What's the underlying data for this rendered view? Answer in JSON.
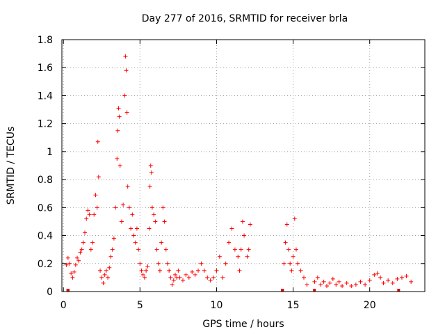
{
  "chart_data": {
    "type": "scatter",
    "title": "Day 277 of 2016, SRMTID for receiver brla",
    "xlabel": "GPS time / hours",
    "ylabel": "SRMTID / TECUs",
    "xlim": [
      -0.1,
      23.6
    ],
    "ylim": [
      0,
      1.8
    ],
    "x_ticks": [
      0,
      5,
      10,
      15,
      20
    ],
    "y_ticks": [
      0,
      0.2,
      0.4,
      0.6,
      0.8,
      1.0,
      1.2,
      1.4,
      1.6,
      1.8
    ],
    "x_tick_labels": [
      "0",
      "5",
      "10",
      "15",
      "20"
    ],
    "y_tick_labels": [
      "0",
      "0.2",
      "0.4",
      "0.6",
      "0.8",
      "1",
      "1.2",
      "1.4",
      "1.6",
      "1.8"
    ],
    "grid": true,
    "marker": "plus",
    "color": "#ff0000",
    "series": [
      {
        "name": "SRMTID",
        "points": [
          [
            0.2,
            0.19
          ],
          [
            0.3,
            0.24
          ],
          [
            0.4,
            0.2
          ],
          [
            0.5,
            0.13
          ],
          [
            0.6,
            0.1
          ],
          [
            0.7,
            0.14
          ],
          [
            0.8,
            0.19
          ],
          [
            0.9,
            0.24
          ],
          [
            1.0,
            0.22
          ],
          [
            1.1,
            0.28
          ],
          [
            1.2,
            0.3
          ],
          [
            1.3,
            0.35
          ],
          [
            1.4,
            0.42
          ],
          [
            1.5,
            0.52
          ],
          [
            1.6,
            0.58
          ],
          [
            1.7,
            0.55
          ],
          [
            1.8,
            0.3
          ],
          [
            1.9,
            0.35
          ],
          [
            2.0,
            0.55
          ],
          [
            2.1,
            0.69
          ],
          [
            2.2,
            0.6
          ],
          [
            2.25,
            1.07
          ],
          [
            2.3,
            0.82
          ],
          [
            2.4,
            0.15
          ],
          [
            2.5,
            0.1
          ],
          [
            2.6,
            0.06
          ],
          [
            2.7,
            0.12
          ],
          [
            2.8,
            0.15
          ],
          [
            2.9,
            0.1
          ],
          [
            3.0,
            0.17
          ],
          [
            3.1,
            0.25
          ],
          [
            3.2,
            0.3
          ],
          [
            3.3,
            0.38
          ],
          [
            3.4,
            0.6
          ],
          [
            3.5,
            0.95
          ],
          [
            3.55,
            1.15
          ],
          [
            3.6,
            1.31
          ],
          [
            3.65,
            1.25
          ],
          [
            3.7,
            0.9
          ],
          [
            3.8,
            0.5
          ],
          [
            3.9,
            0.62
          ],
          [
            4.0,
            1.4
          ],
          [
            4.05,
            1.68
          ],
          [
            4.1,
            1.58
          ],
          [
            4.15,
            1.28
          ],
          [
            4.2,
            0.75
          ],
          [
            4.3,
            0.6
          ],
          [
            4.4,
            0.45
          ],
          [
            4.5,
            0.55
          ],
          [
            4.6,
            0.4
          ],
          [
            4.7,
            0.35
          ],
          [
            4.8,
            0.45
          ],
          [
            4.9,
            0.3
          ],
          [
            5.0,
            0.2
          ],
          [
            5.1,
            0.15
          ],
          [
            5.2,
            0.12
          ],
          [
            5.3,
            0.1
          ],
          [
            5.4,
            0.15
          ],
          [
            5.5,
            0.18
          ],
          [
            5.6,
            0.45
          ],
          [
            5.65,
            0.75
          ],
          [
            5.7,
            0.9
          ],
          [
            5.75,
            0.85
          ],
          [
            5.8,
            0.6
          ],
          [
            5.9,
            0.55
          ],
          [
            6.0,
            0.5
          ],
          [
            6.1,
            0.3
          ],
          [
            6.2,
            0.2
          ],
          [
            6.3,
            0.15
          ],
          [
            6.4,
            0.35
          ],
          [
            6.5,
            0.6
          ],
          [
            6.6,
            0.5
          ],
          [
            6.7,
            0.3
          ],
          [
            6.8,
            0.2
          ],
          [
            6.9,
            0.15
          ],
          [
            7.0,
            0.1
          ],
          [
            7.1,
            0.05
          ],
          [
            7.2,
            0.08
          ],
          [
            7.3,
            0.12
          ],
          [
            7.4,
            0.1
          ],
          [
            7.5,
            0.15
          ],
          [
            7.6,
            0.1
          ],
          [
            7.8,
            0.08
          ],
          [
            8.0,
            0.12
          ],
          [
            8.2,
            0.1
          ],
          [
            8.4,
            0.14
          ],
          [
            8.6,
            0.12
          ],
          [
            8.8,
            0.15
          ],
          [
            9.0,
            0.2
          ],
          [
            9.2,
            0.15
          ],
          [
            9.4,
            0.1
          ],
          [
            9.6,
            0.08
          ],
          [
            9.8,
            0.1
          ],
          [
            10.0,
            0.15
          ],
          [
            10.2,
            0.25
          ],
          [
            10.4,
            0.1
          ],
          [
            10.6,
            0.2
          ],
          [
            10.8,
            0.35
          ],
          [
            11.0,
            0.45
          ],
          [
            11.2,
            0.3
          ],
          [
            11.4,
            0.25
          ],
          [
            11.5,
            0.15
          ],
          [
            11.6,
            0.3
          ],
          [
            11.7,
            0.5
          ],
          [
            11.8,
            0.4
          ],
          [
            12.0,
            0.25
          ],
          [
            12.1,
            0.3
          ],
          [
            12.2,
            0.48
          ],
          [
            14.4,
            0.2
          ],
          [
            14.5,
            0.35
          ],
          [
            14.6,
            0.48
          ],
          [
            14.7,
            0.3
          ],
          [
            14.8,
            0.2
          ],
          [
            14.9,
            0.15
          ],
          [
            15.0,
            0.25
          ],
          [
            15.1,
            0.52
          ],
          [
            15.2,
            0.3
          ],
          [
            15.3,
            0.2
          ],
          [
            15.5,
            0.15
          ],
          [
            15.7,
            0.1
          ],
          [
            15.9,
            0.05
          ],
          [
            16.4,
            0.07
          ],
          [
            16.6,
            0.1
          ],
          [
            16.8,
            0.05
          ],
          [
            17.0,
            0.07
          ],
          [
            17.2,
            0.04
          ],
          [
            17.4,
            0.06
          ],
          [
            17.6,
            0.09
          ],
          [
            17.8,
            0.05
          ],
          [
            18.0,
            0.07
          ],
          [
            18.2,
            0.04
          ],
          [
            18.5,
            0.06
          ],
          [
            18.8,
            0.04
          ],
          [
            19.1,
            0.05
          ],
          [
            19.4,
            0.07
          ],
          [
            19.7,
            0.05
          ],
          [
            20.0,
            0.08
          ],
          [
            20.3,
            0.12
          ],
          [
            20.5,
            0.13
          ],
          [
            20.7,
            0.1
          ],
          [
            20.9,
            0.06
          ],
          [
            21.2,
            0.08
          ],
          [
            21.5,
            0.06
          ],
          [
            21.8,
            0.09
          ],
          [
            22.1,
            0.1
          ],
          [
            22.4,
            0.11
          ],
          [
            22.7,
            0.07
          ]
        ]
      }
    ],
    "baseline_bars": [
      [
        0.2,
        0.4
      ],
      [
        14.2,
        14.4
      ],
      [
        16.3,
        16.4
      ],
      [
        21.8,
        21.9
      ]
    ]
  }
}
